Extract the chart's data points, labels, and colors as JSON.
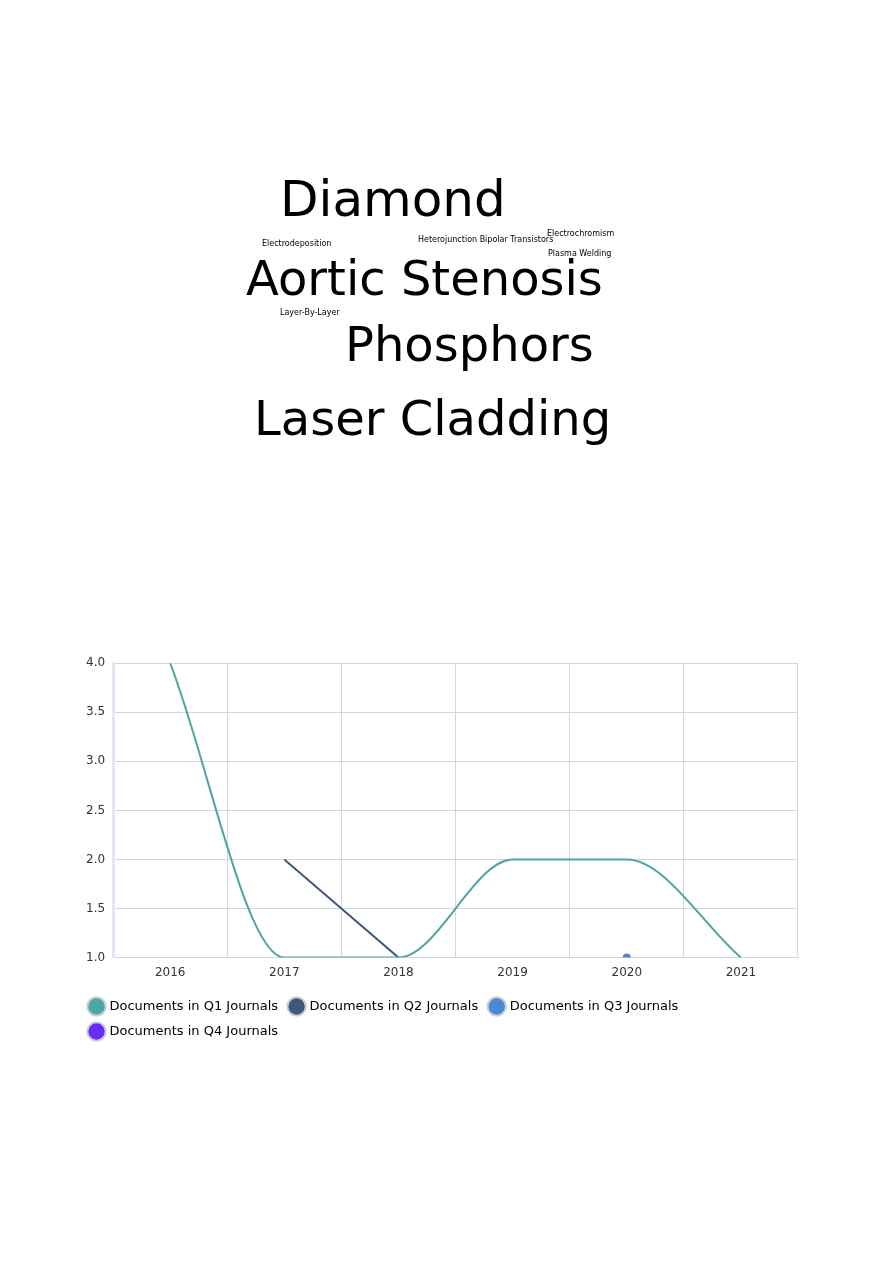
{
  "chart_data": [
    {
      "type": "other",
      "annotations": [
        "Diamond",
        "Electrodeposition",
        "Heterojunction Bipolar Transistors",
        "Electrochromism",
        "Plasma Welding",
        "Aortic Stenosis",
        "Layer-By-Layer",
        "Phosphors",
        "Laser Cladding"
      ]
    },
    {
      "type": "line",
      "categories": [
        "2016",
        "2017",
        "2018",
        "2019",
        "2020",
        "2021"
      ],
      "series": [
        {
          "name": "Documents in Q1 Journals",
          "color": "#4ea6a3",
          "values": [
            4,
            1,
            1,
            2,
            2,
            1
          ]
        },
        {
          "name": "Documents in Q2 Journals",
          "color": "#3e5a7a",
          "values": [
            null,
            2,
            1,
            null,
            null,
            null
          ]
        },
        {
          "name": "Documents in Q3 Journals",
          "color": "#4a8ad0",
          "marker": "circle",
          "values": [
            null,
            null,
            null,
            null,
            1,
            null
          ]
        },
        {
          "name": "Documents in Q4 Journals",
          "color": "#6a2cf5",
          "values": [
            null,
            null,
            null,
            null,
            null,
            null
          ]
        }
      ],
      "ylim": [
        1,
        4
      ],
      "yticks": [
        {
          "value": 1,
          "label": "1.0"
        },
        {
          "value": 1.5,
          "label": "1.5"
        },
        {
          "value": 2,
          "label": "2.0"
        },
        {
          "value": 2.5,
          "label": "2.5"
        },
        {
          "value": 3,
          "label": "3.0"
        },
        {
          "value": 3.5,
          "label": "3.5"
        },
        {
          "value": 4,
          "label": "4.0"
        }
      ],
      "grid": true,
      "legend": "bottom",
      "marker": "none",
      "line_style": "solid"
    }
  ]
}
